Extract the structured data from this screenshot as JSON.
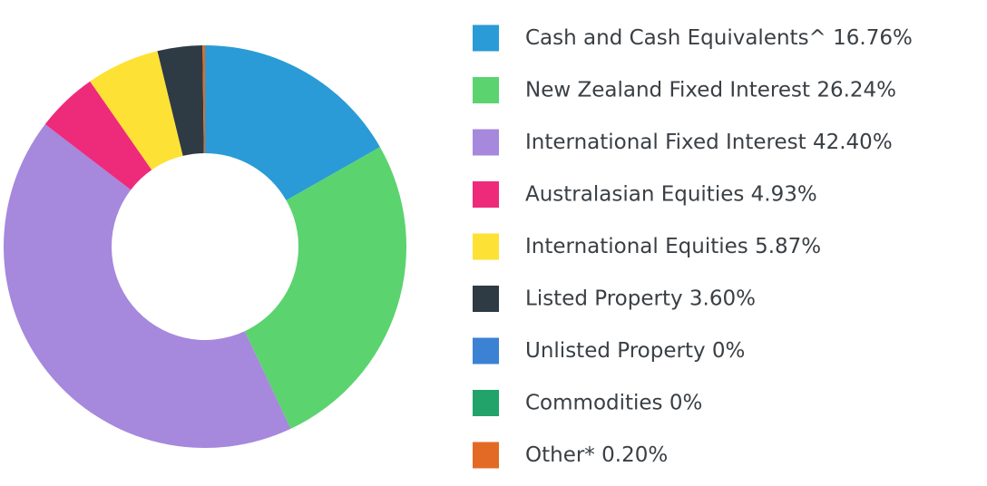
{
  "chart_data": {
    "type": "donut",
    "categories": [
      "Cash and Cash Equivalents^",
      "New Zealand Fixed Interest",
      "International Fixed Interest",
      "Australasian Equities",
      "International Equities",
      "Listed Property",
      "Unlisted Property",
      "Commodities",
      "Other*"
    ],
    "values": [
      16.76,
      26.24,
      42.4,
      4.93,
      5.87,
      3.6,
      0,
      0,
      0.2
    ],
    "value_labels": [
      "16.76%",
      "26.24%",
      "42.40%",
      "4.93%",
      "5.87%",
      "3.60%",
      "0%",
      "0%",
      "0.20%"
    ],
    "colors": [
      "#2a9bd6",
      "#5bd36f",
      "#a688dd",
      "#ee2a7b",
      "#fde135",
      "#2e3a44",
      "#3b82d4",
      "#21a36a",
      "#e36a24"
    ]
  }
}
